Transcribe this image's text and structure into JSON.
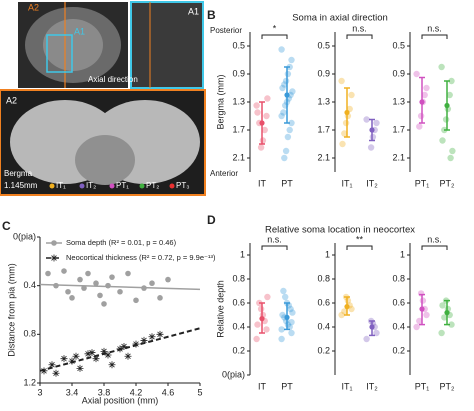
{
  "panel_a": {
    "label": "A",
    "top_left_labels": [
      "A2",
      "A1"
    ],
    "inset_label": "A1",
    "direction_note": "Axial direction",
    "section_label": "A2",
    "bregma": "Bergma",
    "bregma_value": "1.145mm",
    "legend": [
      "IT₁",
      "IT₂",
      "PT₁",
      "PT₂",
      "PT₃"
    ]
  },
  "chart_data": [
    {
      "type": "strip",
      "panel_label": "B",
      "title": "Soma in axial direction",
      "ylabel": "Bergma (mm)",
      "top_label": "Posterior",
      "bottom_label": "Anterior",
      "ylim": [
        0.3,
        2.3
      ],
      "y_inverted": true,
      "yticks": [
        0.5,
        0.9,
        1.3,
        1.7,
        2.1
      ],
      "categories": [
        "IT",
        "PT"
      ],
      "significance": "*",
      "groups": [
        {
          "color": "#e8506a",
          "mean": 1.6,
          "lower": 1.3,
          "upper": 1.9,
          "points": [
            1.35,
            1.5,
            1.7,
            1.85,
            1.95,
            1.6,
            1.45,
            1.25
          ]
        },
        {
          "color": "#3a9ad9",
          "mean": 1.2,
          "lower": 0.8,
          "upper": 1.6,
          "points": [
            0.55,
            0.7,
            0.8,
            0.9,
            1.0,
            1.05,
            1.1,
            1.15,
            1.2,
            1.25,
            1.3,
            1.35,
            1.45,
            1.5,
            1.6,
            1.7,
            1.8,
            2.0,
            2.1
          ]
        }
      ]
    },
    {
      "type": "strip",
      "ylim": [
        0.3,
        2.3
      ],
      "y_inverted": true,
      "yticks": [
        0.5,
        0.9,
        1.3,
        1.7,
        2.1
      ],
      "categories": [
        "IT₁",
        "IT₂"
      ],
      "significance": "n.s.",
      "groups": [
        {
          "color": "#f0b020",
          "mean": 1.45,
          "lower": 1.1,
          "upper": 1.8,
          "points": [
            1.0,
            1.2,
            1.4,
            1.5,
            1.6,
            1.75,
            1.9
          ]
        },
        {
          "color": "#8060c0",
          "mean": 1.7,
          "lower": 1.55,
          "upper": 1.85,
          "points": [
            1.55,
            1.6,
            1.7,
            1.8,
            1.95
          ]
        }
      ]
    },
    {
      "type": "strip",
      "ylim": [
        0.3,
        2.3
      ],
      "y_inverted": true,
      "yticks": [
        0.5,
        0.9,
        1.3,
        1.7,
        2.1
      ],
      "categories": [
        "PT₁",
        "PT₂"
      ],
      "significance": "n.s.",
      "groups": [
        {
          "color": "#d050c0",
          "mean": 1.3,
          "lower": 0.95,
          "upper": 1.6,
          "points": [
            0.9,
            1.1,
            1.2,
            1.3,
            1.5,
            1.65
          ]
        },
        {
          "color": "#40b040",
          "mean": 1.35,
          "lower": 1.0,
          "upper": 1.7,
          "points": [
            0.8,
            1.0,
            1.2,
            1.4,
            1.55,
            1.7,
            1.85,
            2.0,
            2.1
          ]
        }
      ]
    },
    {
      "type": "scatter",
      "panel_label": "C",
      "xlabel": "Axial position (mm)",
      "ylabel": "Distance from pia (mm)",
      "xlim": [
        3,
        5
      ],
      "ylim": [
        0,
        1.2
      ],
      "y_inverted": true,
      "xticks": [
        3,
        3.4,
        3.8,
        4.2,
        4.6,
        5
      ],
      "yticks": [
        {
          "value": 0,
          "label": "0(pia)"
        },
        0.4,
        0.8,
        1.2
      ],
      "series": [
        {
          "name": "Soma depth (R² = 0.01, p = 0.46)",
          "color": "#a0a0a0",
          "marker": "circle",
          "line": "solid",
          "x": [
            3.1,
            3.2,
            3.3,
            3.35,
            3.4,
            3.5,
            3.55,
            3.6,
            3.7,
            3.75,
            3.8,
            3.85,
            3.9,
            4.0,
            4.1,
            4.2,
            4.3,
            4.4,
            4.5,
            4.6
          ],
          "values": [
            0.3,
            0.4,
            0.28,
            0.45,
            0.5,
            0.35,
            0.42,
            0.3,
            0.38,
            0.48,
            0.55,
            0.4,
            0.33,
            0.45,
            0.3,
            0.52,
            0.42,
            0.38,
            0.5,
            0.35
          ],
          "fit": {
            "x": [
              3,
              5
            ],
            "values": [
              0.39,
              0.43
            ]
          }
        },
        {
          "name": "Neocortical thickness (R² = 0.72, p = 9.9e⁻¹³)",
          "color": "#222222",
          "marker": "star",
          "line": "dashed",
          "x": [
            3.05,
            3.15,
            3.2,
            3.3,
            3.4,
            3.45,
            3.5,
            3.6,
            3.65,
            3.7,
            3.8,
            3.85,
            3.9,
            4.0,
            4.05,
            4.1,
            4.2,
            4.3,
            4.4,
            4.5
          ],
          "values": [
            1.1,
            1.05,
            1.12,
            1.0,
            1.02,
            0.98,
            1.08,
            0.96,
            0.95,
            1.0,
            0.94,
            0.97,
            1.05,
            0.92,
            0.9,
            0.98,
            0.88,
            0.85,
            0.82,
            0.8
          ],
          "fit": {
            "x": [
              3,
              5
            ],
            "values": [
              1.1,
              0.75
            ]
          }
        }
      ]
    },
    {
      "type": "strip",
      "panel_label": "D",
      "title": "Relative soma location in neocortex",
      "ylabel": "Relative depth",
      "ylim": [
        0,
        1.1
      ],
      "yticks": [
        {
          "value": 0,
          "label": "0(pia)"
        },
        0.2,
        0.4,
        0.6,
        0.8,
        1
      ],
      "categories": [
        "IT",
        "PT"
      ],
      "significance": "n.s.",
      "groups": [
        {
          "color": "#e8506a",
          "mean": 0.47,
          "lower": 0.35,
          "upper": 0.6,
          "points": [
            0.3,
            0.38,
            0.45,
            0.5,
            0.55,
            0.6,
            0.42,
            0.65
          ]
        },
        {
          "color": "#3a9ad9",
          "mean": 0.48,
          "lower": 0.38,
          "upper": 0.6,
          "points": [
            0.3,
            0.35,
            0.4,
            0.42,
            0.45,
            0.48,
            0.5,
            0.52,
            0.55,
            0.58,
            0.6,
            0.65,
            0.7,
            0.38,
            0.44
          ]
        }
      ]
    },
    {
      "type": "strip",
      "ylim": [
        0,
        1.1
      ],
      "yticks": [
        0.2,
        0.4,
        0.6,
        0.8,
        1
      ],
      "categories": [
        "IT₁",
        "IT₂"
      ],
      "significance": "**",
      "groups": [
        {
          "color": "#f0b020",
          "mean": 0.57,
          "lower": 0.5,
          "upper": 0.65,
          "points": [
            0.5,
            0.55,
            0.58,
            0.62,
            0.65,
            0.53
          ]
        },
        {
          "color": "#8060c0",
          "mean": 0.4,
          "lower": 0.33,
          "upper": 0.45,
          "points": [
            0.3,
            0.35,
            0.4,
            0.43,
            0.45
          ]
        }
      ]
    },
    {
      "type": "strip",
      "ylim": [
        0,
        1.1
      ],
      "yticks": [
        0.2,
        0.4,
        0.6,
        0.8,
        1
      ],
      "categories": [
        "PT₁",
        "PT₂"
      ],
      "significance": "n.s.",
      "groups": [
        {
          "color": "#d050c0",
          "mean": 0.55,
          "lower": 0.42,
          "upper": 0.67,
          "points": [
            0.4,
            0.5,
            0.55,
            0.62,
            0.68,
            0.45
          ]
        },
        {
          "color": "#40b040",
          "mean": 0.52,
          "lower": 0.42,
          "upper": 0.62,
          "points": [
            0.35,
            0.42,
            0.5,
            0.55,
            0.62,
            0.48,
            0.58
          ]
        }
      ]
    }
  ]
}
